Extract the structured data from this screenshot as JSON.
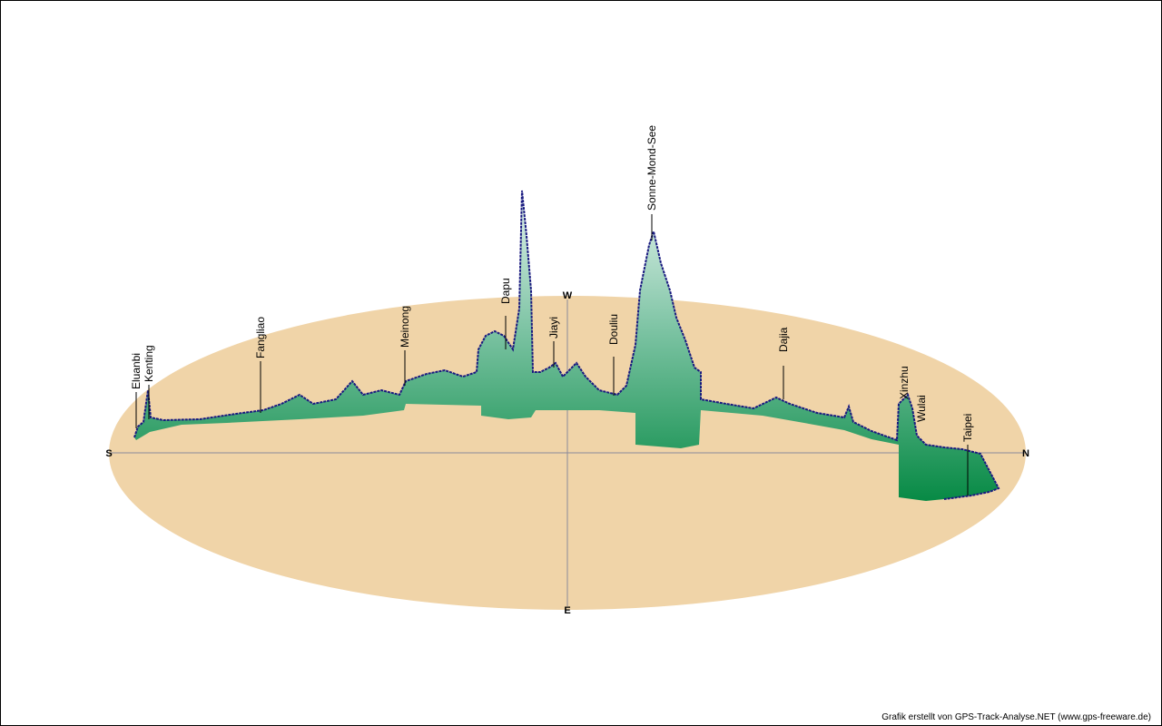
{
  "compass": {
    "south": "S",
    "north": "N",
    "west": "W",
    "east": "E"
  },
  "places": [
    "Eluanbi",
    "Kenting",
    "Fangliao",
    "Meinong",
    "Dapu",
    "Jiayi",
    "Douliu",
    "Sonne-Mond-See",
    "Dajia",
    "Xinzhu",
    "Wulai",
    "Taipei"
  ],
  "footer": "Grafik erstellt von GPS-Track-Analyse.NET (www.gps-freeware.de)"
}
